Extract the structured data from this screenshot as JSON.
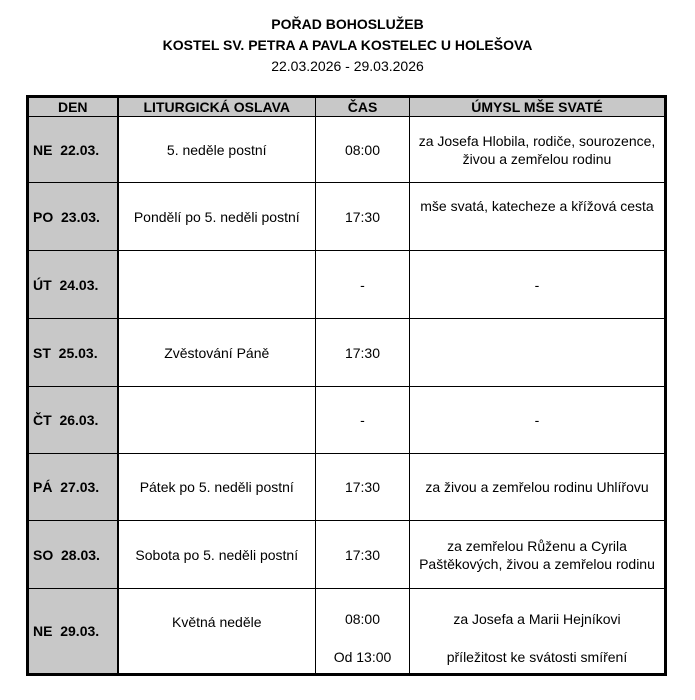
{
  "header": {
    "title": "POŘAD BOHOSLUŽEB",
    "church": "KOSTEL SV. PETRA A PAVLA KOSTELEC U HOLEŠOVA",
    "range": "22.03.2026 - 29.03.2026"
  },
  "columns": [
    "DEN",
    "LITURGICKÁ OSLAVA",
    "ČAS",
    "ÚMYSL MŠE SVATÉ"
  ],
  "rows": [
    {
      "day": "NE  22.03.",
      "celebration": "5. neděle postní",
      "time": "08:00",
      "intention": "za Josefa Hlobila, rodiče, sourozence, živou a zemřelou rodinu"
    },
    {
      "day": "PO  23.03.",
      "celebration": "Pondělí po 5. neděli postní",
      "time": "17:30",
      "intention": "mše svatá, katecheze a křížová cesta"
    },
    {
      "day": "ÚT  24.03.",
      "celebration": "",
      "time": "-",
      "intention": "-"
    },
    {
      "day": "ST  25.03.",
      "celebration": "Zvěstování Páně",
      "time": "17:30",
      "intention": ""
    },
    {
      "day": "ČT  26.03.",
      "celebration": "",
      "time": "-",
      "intention": "-"
    },
    {
      "day": "PÁ  27.03.",
      "celebration": "Pátek po 5. neděli postní",
      "time": "17:30",
      "intention": "za živou a zemřelou rodinu Uhlířovu"
    },
    {
      "day": "SO  28.03.",
      "celebration": "Sobota po 5. neděli postní",
      "time": "17:30",
      "intention": "za zemřelou Růženu a Cyrila Paštěkových, živou a zemřelou rodinu"
    }
  ],
  "last_row": {
    "day": "NE  29.03.",
    "celebration": "Květná neděle",
    "times": [
      "08:00",
      "Od 13:00"
    ],
    "intentions": [
      "za Josefa a Marii Hejníkovi",
      "příležitost ke svátosti smíření"
    ]
  }
}
